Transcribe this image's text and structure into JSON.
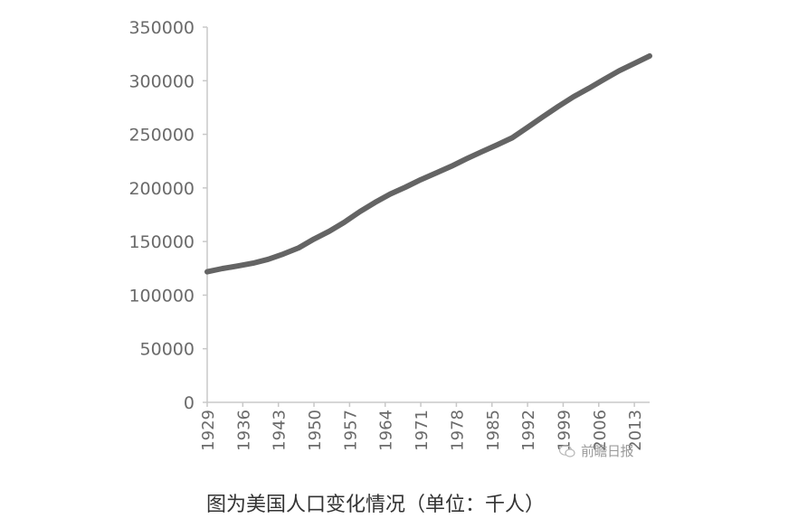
{
  "chart_data": {
    "type": "line",
    "title": "",
    "xlabel": "",
    "ylabel": "",
    "ylim": [
      0,
      350000
    ],
    "yticks": [
      0,
      50000,
      100000,
      150000,
      200000,
      250000,
      300000,
      350000
    ],
    "ytick_labels": [
      "0",
      "50000",
      "100000",
      "150000",
      "200000",
      "250000",
      "300000",
      "350000"
    ],
    "xlim": [
      1929,
      2016
    ],
    "xtick_labels": [
      "1929",
      "1936",
      "1943",
      "1950",
      "1957",
      "1964",
      "1971",
      "1978",
      "1985",
      "1992",
      "1999",
      "2006",
      "2013"
    ],
    "grid": false,
    "legend": "none",
    "series": [
      {
        "color": "#646464",
        "x": [
          1929,
          1932,
          1935,
          1938,
          1941,
          1944,
          1947,
          1950,
          1953,
          1956,
          1959,
          1962,
          1965,
          1968,
          1971,
          1974,
          1977,
          1980,
          1983,
          1986,
          1989,
          1992,
          1995,
          1998,
          2001,
          2004,
          2007,
          2010,
          2013,
          2016
        ],
        "y": [
          121800,
          124800,
          127200,
          129800,
          133400,
          138400,
          144100,
          152300,
          159600,
          168100,
          177800,
          186500,
          194300,
          200700,
          207700,
          213900,
          220200,
          227200,
          233800,
          240100,
          246800,
          256500,
          266300,
          275900,
          285000,
          292800,
          301200,
          309300,
          316100,
          323100
        ]
      }
    ]
  },
  "watermark": {
    "text": "前瞻日报"
  },
  "caption": "图为美国人口变化情况（单位：千人）"
}
